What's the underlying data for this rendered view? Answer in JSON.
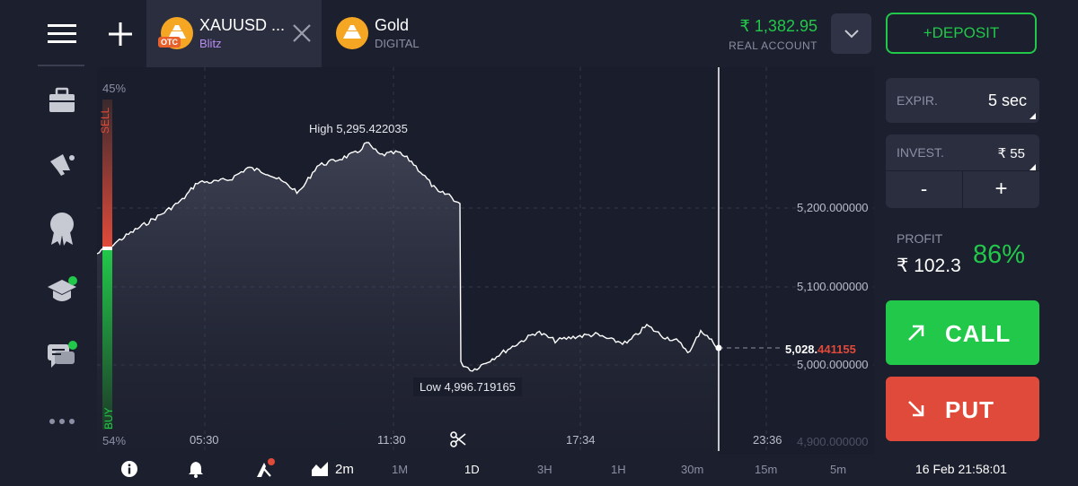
{
  "tabs": [
    {
      "symbol": "XAUUSD ...",
      "sub": "Blitz",
      "badge": "OTC"
    },
    {
      "symbol": "Gold",
      "sub": "DIGITAL"
    }
  ],
  "account": {
    "balance": "₹ 1,382.95",
    "type": "REAL ACCOUNT"
  },
  "deposit_label": "+DEPOSIT",
  "panel": {
    "expiry_label": "EXPIR.",
    "expiry_value": "5 sec",
    "invest_label": "INVEST.",
    "invest_value": "₹ 55",
    "minus": "-",
    "plus": "+",
    "profit_label": "PROFIT",
    "profit_value": "₹ 102.3",
    "profit_pct": "86%",
    "call_label": "CALL",
    "put_label": "PUT"
  },
  "chart": {
    "sell_label": "SELL",
    "buy_label": "BUY",
    "sell_pct": "45%",
    "buy_pct": "54%",
    "high_label": "High 5,295.422035",
    "low_label": "Low 4,996.719165",
    "current_price_main": "5,028.",
    "current_price_tail": "441155",
    "price_axis": [
      "5,200.000000",
      "5,100.000000",
      "5,000.000000",
      "4,900.000000"
    ],
    "time_axis": [
      "05:30",
      "11:30",
      "17:34",
      "23:36"
    ],
    "sentiment_buy_fraction": 0.54
  },
  "bottom": {
    "chart_period": "2m",
    "timeframes": [
      "1M",
      "1D",
      "3H",
      "1H",
      "30m",
      "15m",
      "5m"
    ],
    "active_timeframe": "1D",
    "datetime": "16 Feb 21:58:01"
  },
  "colors": {
    "green": "#22c84a",
    "red": "#e04a3a",
    "accent_orange": "#f5a623"
  }
}
